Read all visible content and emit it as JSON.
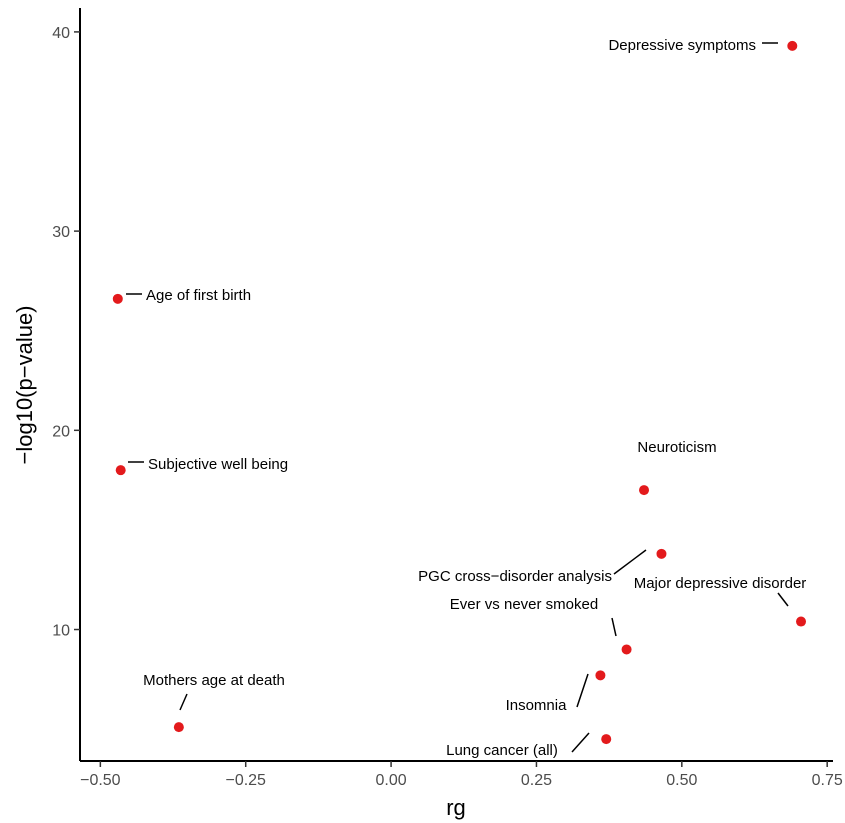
{
  "chart_data": {
    "type": "scatter",
    "title": "",
    "xlabel": "rg",
    "ylabel": "−log10(p−value)",
    "xlim": [
      -0.535,
      0.76
    ],
    "ylim": [
      3.4,
      41.2
    ],
    "x_ticks": [
      -0.5,
      -0.25,
      0.0,
      0.25,
      0.5,
      0.75
    ],
    "x_tick_labels": [
      "−0.50",
      "−0.25",
      "0.00",
      "0.25",
      "0.50",
      "0.75"
    ],
    "y_ticks": [
      10,
      20,
      30,
      40
    ],
    "y_tick_labels": [
      "10",
      "20",
      "30",
      "40"
    ],
    "grid": false,
    "point_color": "#e31a1c",
    "points": [
      {
        "label": "Depressive symptoms",
        "x": 0.69,
        "y": 39.3
      },
      {
        "label": "Age of first birth",
        "x": -0.47,
        "y": 26.6
      },
      {
        "label": "Subjective well being",
        "x": -0.465,
        "y": 18.0
      },
      {
        "label": "Neuroticism",
        "x": 0.435,
        "y": 17.0
      },
      {
        "label": "PGC cross−disorder analysis",
        "x": 0.465,
        "y": 13.8
      },
      {
        "label": "Major depressive disorder",
        "x": 0.705,
        "y": 10.4
      },
      {
        "label": "Ever vs never smoked",
        "x": 0.405,
        "y": 9.0
      },
      {
        "label": "Insomnia",
        "x": 0.36,
        "y": 7.7
      },
      {
        "label": "Mothers age at death",
        "x": -0.365,
        "y": 5.1
      },
      {
        "label": "Lung cancer (all)",
        "x": 0.37,
        "y": 4.5
      }
    ]
  }
}
